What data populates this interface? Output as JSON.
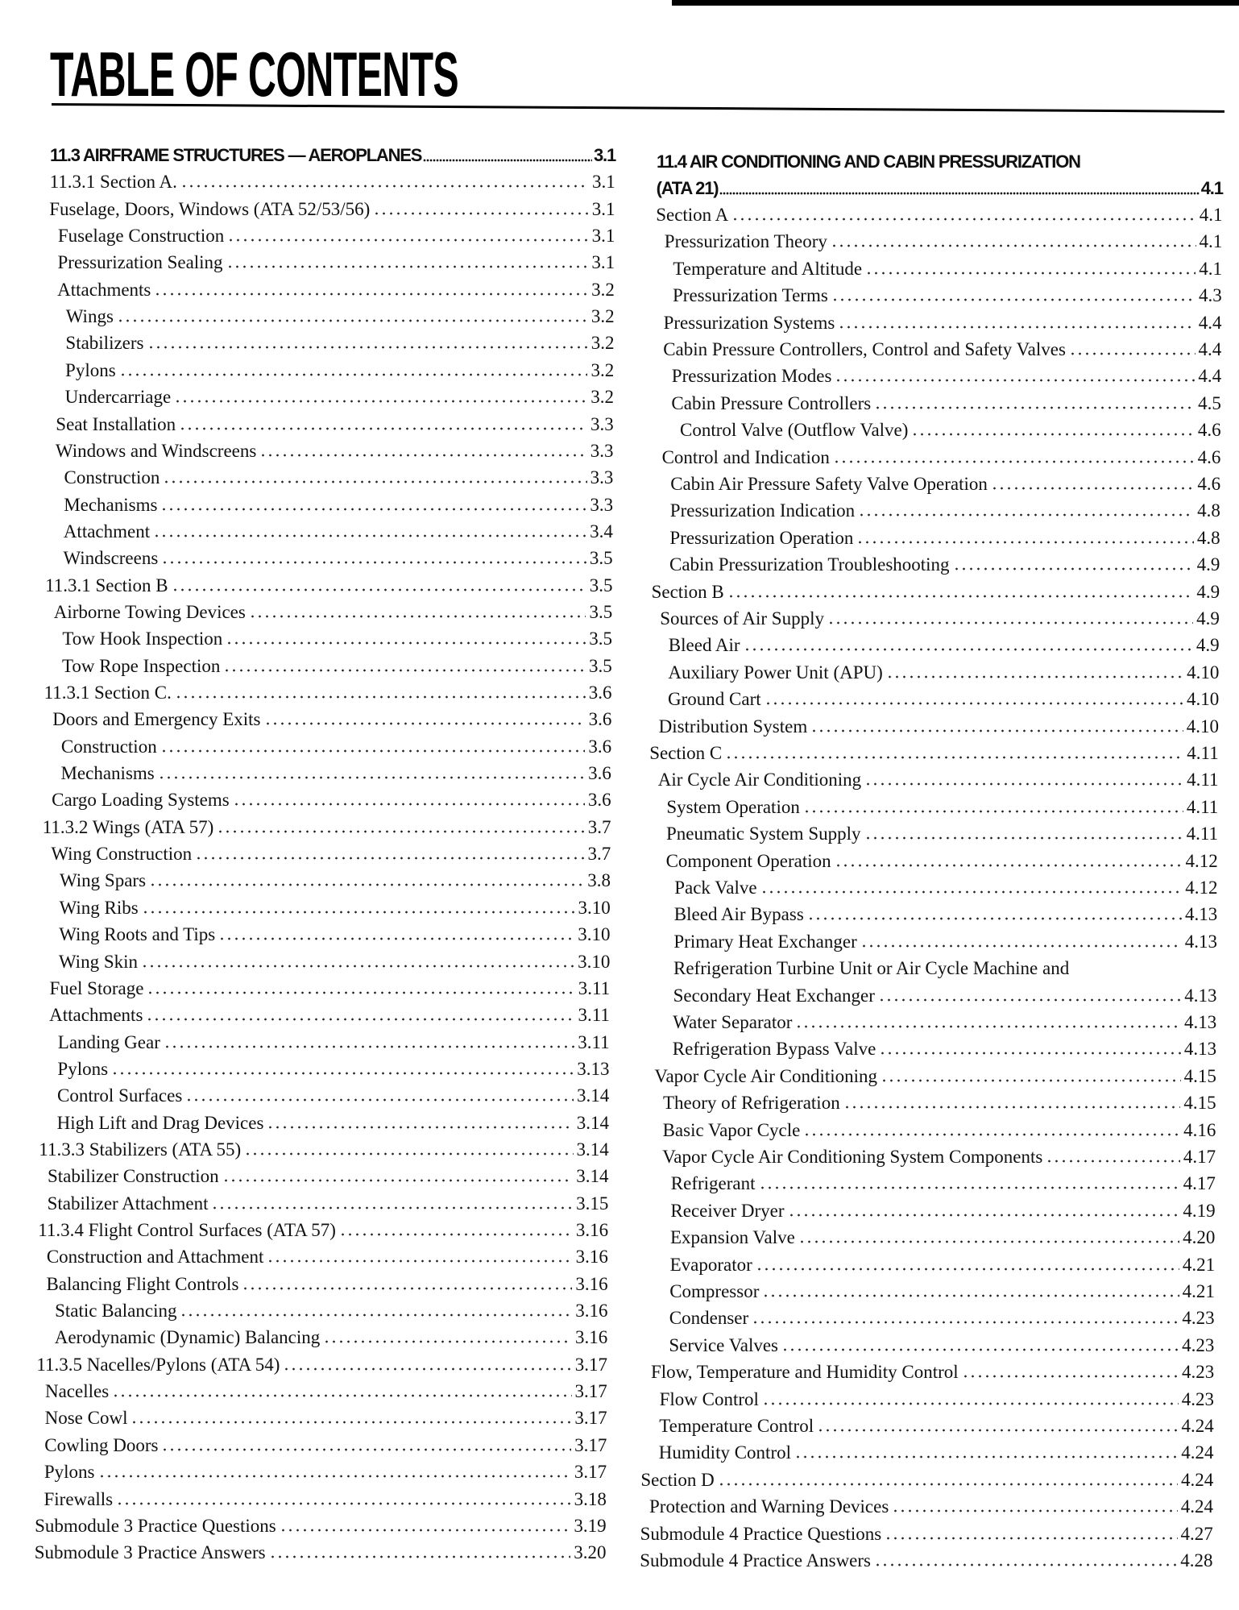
{
  "title": "TABLE OF CONTENTS",
  "left_column": [
    {
      "label": "11.3 AIRFRAME STRUCTURES — AEROPLANES",
      "page": "3.1",
      "level": 0,
      "heading": true
    },
    {
      "label": "11.3.1 Section A.",
      "page": "3.1",
      "level": 0
    },
    {
      "label": "Fuselage, Doors, Windows (ATA 52/53/56)",
      "page": "3.1",
      "level": 0
    },
    {
      "label": "Fuselage Construction",
      "page": "3.1",
      "level": 1
    },
    {
      "label": "Pressurization Sealing",
      "page": "3.1",
      "level": 1
    },
    {
      "label": "Attachments",
      "page": "3.2",
      "level": 1
    },
    {
      "label": "Wings",
      "page": "3.2",
      "level": 2
    },
    {
      "label": "Stabilizers",
      "page": "3.2",
      "level": 2
    },
    {
      "label": "Pylons",
      "page": "3.2",
      "level": 2
    },
    {
      "label": "Undercarriage",
      "page": "3.2",
      "level": 2
    },
    {
      "label": "Seat Installation",
      "page": "3.3",
      "level": 1
    },
    {
      "label": "Windows and Windscreens",
      "page": "3.3",
      "level": 1
    },
    {
      "label": "Construction",
      "page": "3.3",
      "level": 2
    },
    {
      "label": "Mechanisms",
      "page": "3.3",
      "level": 2
    },
    {
      "label": "Attachment",
      "page": "3.4",
      "level": 2
    },
    {
      "label": "Windscreens",
      "page": "3.5",
      "level": 2
    },
    {
      "label": "11.3.1 Section B",
      "page": "3.5",
      "level": 0
    },
    {
      "label": "Airborne Towing Devices",
      "page": "3.5",
      "level": 1
    },
    {
      "label": "Tow Hook Inspection",
      "page": "3.5",
      "level": 2
    },
    {
      "label": "Tow Rope Inspection",
      "page": "3.5",
      "level": 2
    },
    {
      "label": "11.3.1 Section C.",
      "page": "3.6",
      "level": 0
    },
    {
      "label": "Doors and Emergency Exits",
      "page": "3.6",
      "level": 1
    },
    {
      "label": "Construction",
      "page": "3.6",
      "level": 2
    },
    {
      "label": "Mechanisms",
      "page": "3.6",
      "level": 2
    },
    {
      "label": "Cargo Loading Systems",
      "page": "3.6",
      "level": 1
    },
    {
      "label": "11.3.2 Wings (ATA 57)",
      "page": "3.7",
      "level": 0
    },
    {
      "label": "Wing Construction",
      "page": "3.7",
      "level": 1
    },
    {
      "label": "Wing Spars",
      "page": "3.8",
      "level": 2
    },
    {
      "label": "Wing Ribs",
      "page": "3.10",
      "level": 2
    },
    {
      "label": "Wing Roots and Tips",
      "page": "3.10",
      "level": 2
    },
    {
      "label": "Wing Skin",
      "page": "3.10",
      "level": 2
    },
    {
      "label": "Fuel Storage",
      "page": "3.11",
      "level": 1
    },
    {
      "label": "Attachments",
      "page": "3.11",
      "level": 1
    },
    {
      "label": "Landing Gear",
      "page": "3.11",
      "level": 2
    },
    {
      "label": "Pylons",
      "page": "3.13",
      "level": 2
    },
    {
      "label": "Control Surfaces",
      "page": "3.14",
      "level": 2
    },
    {
      "label": "High Lift and Drag Devices",
      "page": "3.14",
      "level": 2
    },
    {
      "label": "11.3.3 Stabilizers (ATA 55)",
      "page": "3.14",
      "level": 0
    },
    {
      "label": "Stabilizer Construction",
      "page": "3.14",
      "level": 1
    },
    {
      "label": "Stabilizer Attachment",
      "page": "3.15",
      "level": 1
    },
    {
      "label": "11.3.4 Flight Control Surfaces (ATA 57)",
      "page": "3.16",
      "level": 0
    },
    {
      "label": "Construction and Attachment",
      "page": "3.16",
      "level": 1
    },
    {
      "label": "Balancing Flight Controls",
      "page": "3.16",
      "level": 1
    },
    {
      "label": "Static Balancing",
      "page": "3.16",
      "level": 2
    },
    {
      "label": "Aerodynamic (Dynamic) Balancing",
      "page": "3.16",
      "level": 2
    },
    {
      "label": "11.3.5 Nacelles/Pylons (ATA 54)",
      "page": "3.17",
      "level": 0
    },
    {
      "label": "Nacelles",
      "page": "3.17",
      "level": 1
    },
    {
      "label": "Nose Cowl",
      "page": "3.17",
      "level": 1
    },
    {
      "label": "Cowling Doors",
      "page": "3.17",
      "level": 1
    },
    {
      "label": "Pylons",
      "page": "3.17",
      "level": 1
    },
    {
      "label": "Firewalls",
      "page": "3.18",
      "level": 1
    },
    {
      "label": "Submodule 3 Practice Questions",
      "page": "3.19",
      "level": 0
    },
    {
      "label": "Submodule 3 Practice Answers",
      "page": "3.20",
      "level": 0
    }
  ],
  "right_column": [
    {
      "label": "11.4 AIR CONDITIONING AND CABIN PRESSURIZATION",
      "page": "",
      "level": 0,
      "heading": true
    },
    {
      "label": "(ATA 21)",
      "page": "4.1",
      "level": 0,
      "heading": true
    },
    {
      "label": "Section A",
      "page": "4.1",
      "level": 0
    },
    {
      "label": "Pressurization Theory",
      "page": "4.1",
      "level": 1
    },
    {
      "label": "Temperature and Altitude",
      "page": "4.1",
      "level": 2
    },
    {
      "label": "Pressurization Terms",
      "page": "4.3",
      "level": 2
    },
    {
      "label": "Pressurization Systems",
      "page": "4.4",
      "level": 1
    },
    {
      "label": "Cabin Pressure Controllers, Control and Safety Valves",
      "page": "4.4",
      "level": 1
    },
    {
      "label": "Pressurization Modes",
      "page": "4.4",
      "level": 2
    },
    {
      "label": "Cabin Pressure Controllers",
      "page": "4.5",
      "level": 2
    },
    {
      "label": "Control Valve (Outflow Valve)",
      "page": "4.6",
      "level": 3
    },
    {
      "label": "Control and Indication",
      "page": "4.6",
      "level": 1
    },
    {
      "label": "Cabin Air Pressure Safety Valve Operation",
      "page": "4.6",
      "level": 2
    },
    {
      "label": "Pressurization Indication",
      "page": "4.8",
      "level": 2
    },
    {
      "label": "Pressurization Operation",
      "page": "4.8",
      "level": 2
    },
    {
      "label": "Cabin Pressurization Troubleshooting",
      "page": "4.9",
      "level": 2
    },
    {
      "label": "Section B",
      "page": "4.9",
      "level": 0
    },
    {
      "label": "Sources of Air Supply",
      "page": "4.9",
      "level": 1
    },
    {
      "label": "Bleed Air",
      "page": "4.9",
      "level": 2
    },
    {
      "label": "Auxiliary Power Unit (APU)",
      "page": "4.10",
      "level": 2
    },
    {
      "label": "Ground Cart",
      "page": "4.10",
      "level": 2
    },
    {
      "label": "Distribution System",
      "page": "4.10",
      "level": 1
    },
    {
      "label": "Section C",
      "page": "4.11",
      "level": 0
    },
    {
      "label": "Air Cycle Air Conditioning",
      "page": "4.11",
      "level": 1
    },
    {
      "label": "System Operation",
      "page": "4.11",
      "level": 2
    },
    {
      "label": "Pneumatic System Supply",
      "page": "4.11",
      "level": 2
    },
    {
      "label": "Component Operation",
      "page": "4.12",
      "level": 2
    },
    {
      "label": "Pack Valve",
      "page": "4.12",
      "level": 3
    },
    {
      "label": "Bleed Air Bypass",
      "page": "4.13",
      "level": 3
    },
    {
      "label": "Primary Heat Exchanger",
      "page": "4.13",
      "level": 3
    },
    {
      "label": "Refrigeration Turbine Unit or Air Cycle Machine and",
      "page": "",
      "level": 3
    },
    {
      "label": "Secondary Heat Exchanger",
      "page": "4.13",
      "level": 3
    },
    {
      "label": "Water Separator",
      "page": "4.13",
      "level": 3
    },
    {
      "label": "Refrigeration Bypass Valve",
      "page": "4.13",
      "level": 3
    },
    {
      "label": "Vapor Cycle Air Conditioning",
      "page": "4.15",
      "level": 1
    },
    {
      "label": "Theory of Refrigeration",
      "page": "4.15",
      "level": 2
    },
    {
      "label": "Basic Vapor Cycle",
      "page": "4.16",
      "level": 2
    },
    {
      "label": "Vapor Cycle Air Conditioning System Components",
      "page": "4.17",
      "level": 2
    },
    {
      "label": "Refrigerant",
      "page": "4.17",
      "level": 3
    },
    {
      "label": "Receiver Dryer",
      "page": "4.19",
      "level": 3
    },
    {
      "label": "Expansion Valve",
      "page": "4.20",
      "level": 3
    },
    {
      "label": "Evaporator",
      "page": "4.21",
      "level": 3
    },
    {
      "label": "Compressor",
      "page": "4.21",
      "level": 3
    },
    {
      "label": "Condenser",
      "page": "4.23",
      "level": 3
    },
    {
      "label": "Service Valves",
      "page": "4.23",
      "level": 3
    },
    {
      "label": "Flow, Temperature and Humidity Control",
      "page": "4.23",
      "level": 1
    },
    {
      "label": "Flow Control",
      "page": "4.23",
      "level": 2
    },
    {
      "label": "Temperature Control",
      "page": "4.24",
      "level": 2
    },
    {
      "label": "Humidity Control",
      "page": "4.24",
      "level": 2
    },
    {
      "label": "Section D",
      "page": "4.24",
      "level": 0
    },
    {
      "label": "Protection and Warning Devices",
      "page": "4.24",
      "level": 1
    },
    {
      "label": "Submodule 4 Practice Questions",
      "page": "4.27",
      "level": 0
    },
    {
      "label": "Submodule 4 Practice Answers",
      "page": "4.28",
      "level": 0
    }
  ]
}
